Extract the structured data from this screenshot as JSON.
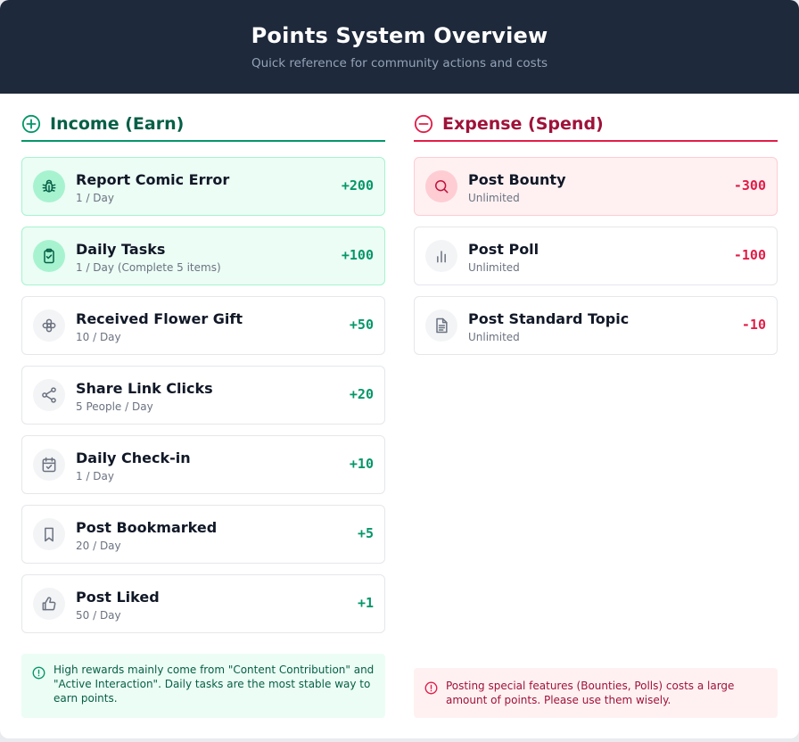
{
  "header": {
    "title": "Points System Overview",
    "subtitle": "Quick reference for community actions and costs"
  },
  "income": {
    "title": "Income (Earn)",
    "icon": "plus-circle-icon",
    "color": "#059669",
    "items": [
      {
        "name": "Report Comic Error",
        "limit": "1 / Day",
        "points": "+200",
        "icon": "bug-icon",
        "highlight": true
      },
      {
        "name": "Daily Tasks",
        "limit": "1 / Day (Complete 5 items)",
        "points": "+100",
        "icon": "clipboard-check-icon",
        "highlight": true
      },
      {
        "name": "Received Flower Gift",
        "limit": "10 / Day",
        "points": "+50",
        "icon": "flower-icon",
        "highlight": false
      },
      {
        "name": "Share Link Clicks",
        "limit": "5 People / Day",
        "points": "+20",
        "icon": "share-icon",
        "highlight": false
      },
      {
        "name": "Daily Check-in",
        "limit": "1 / Day",
        "points": "+10",
        "icon": "calendar-check-icon",
        "highlight": false
      },
      {
        "name": "Post Bookmarked",
        "limit": "20 / Day",
        "points": "+5",
        "icon": "bookmark-icon",
        "highlight": false
      },
      {
        "name": "Post Liked",
        "limit": "50 / Day",
        "points": "+1",
        "icon": "thumbs-up-icon",
        "highlight": false
      }
    ],
    "note": "High rewards mainly come from \"Content Contribution\" and \"Active Interaction\". Daily tasks are the most stable way to earn points."
  },
  "expense": {
    "title": "Expense (Spend)",
    "icon": "minus-circle-icon",
    "color": "#e11d48",
    "items": [
      {
        "name": "Post Bounty",
        "limit": "Unlimited",
        "points": "-300",
        "icon": "search-icon",
        "highlight": true
      },
      {
        "name": "Post Poll",
        "limit": "Unlimited",
        "points": "-100",
        "icon": "bar-chart-icon",
        "highlight": false
      },
      {
        "name": "Post Standard Topic",
        "limit": "Unlimited",
        "points": "-10",
        "icon": "document-icon",
        "highlight": false
      }
    ],
    "note": "Posting special features (Bounties, Polls) costs a large amount of points. Please use them wisely."
  }
}
